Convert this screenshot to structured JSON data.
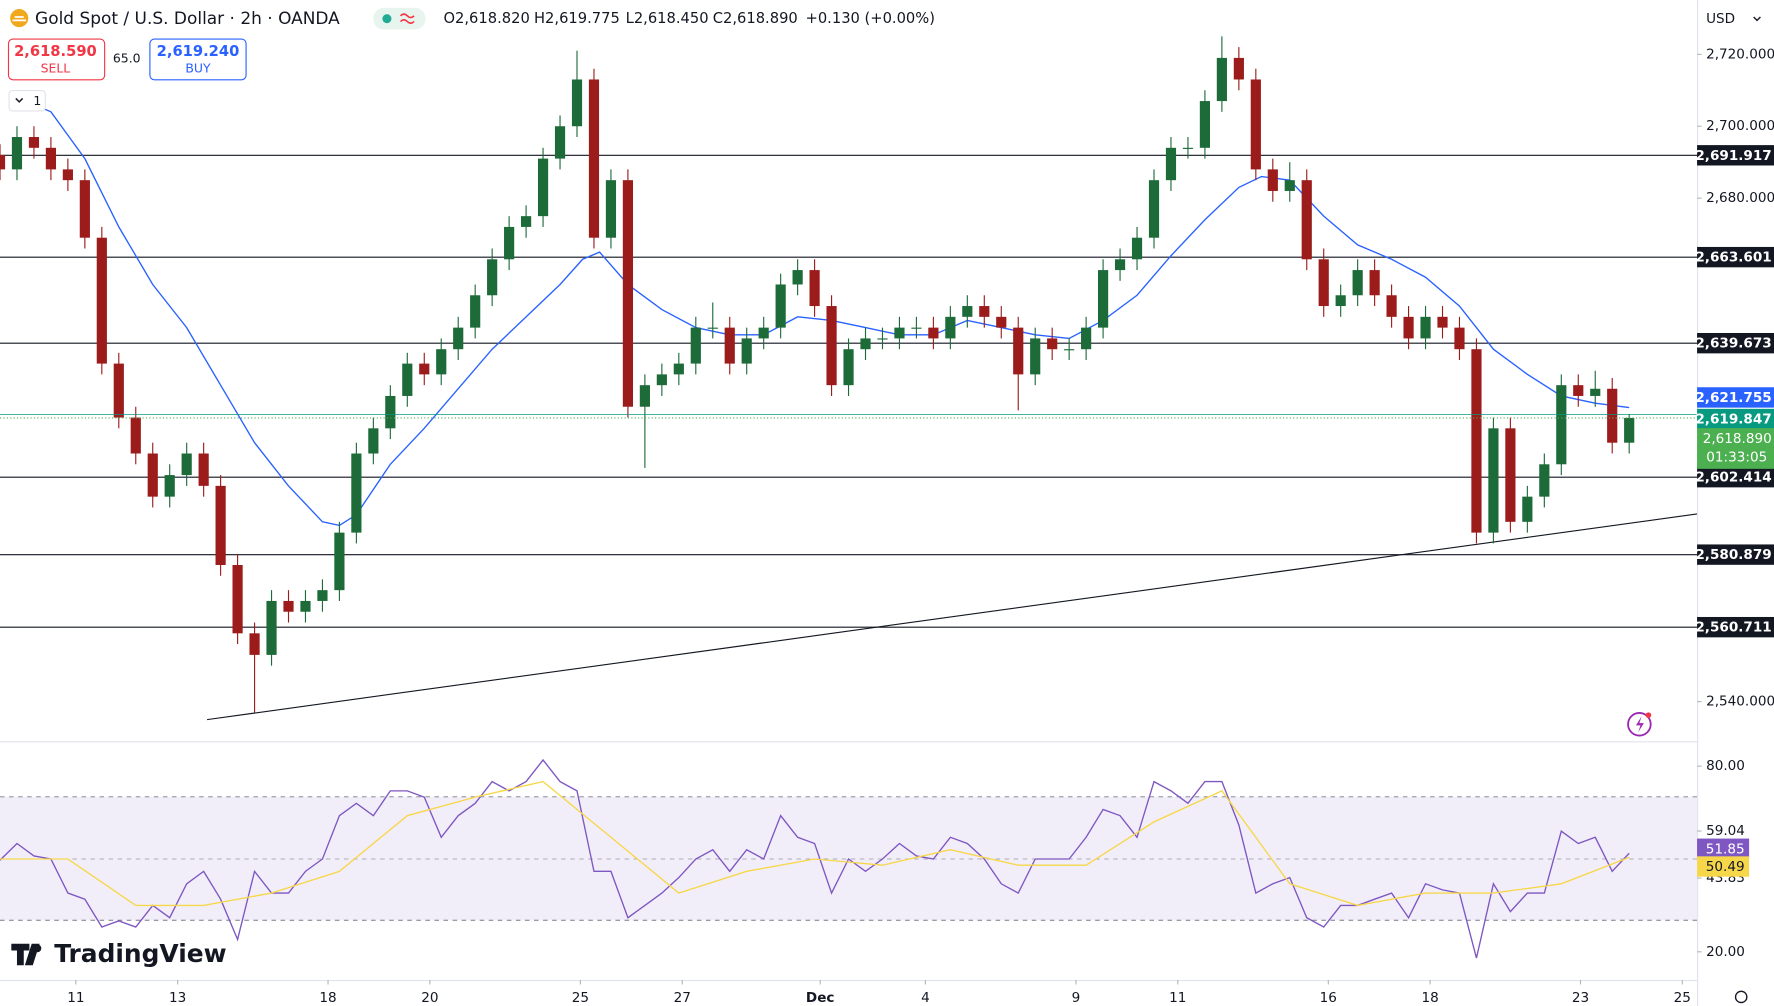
{
  "chart_data": [
    {
      "type": "candlestick",
      "title": "Gold Spot / U.S. Dollar · 2h · OANDA",
      "ohlc_labels": [
        "O2,618.820",
        "H2,619.775",
        "L2,618.450",
        "C2,618.890",
        "+0.130 (+0.00%)"
      ],
      "trade": {
        "sell_price": "2,618.590",
        "sell": "SELL",
        "spread": "65.0",
        "buy_price": "2,619.240",
        "buy": "BUY"
      },
      "indicator_count": "1",
      "currency": "USD",
      "branding": "TradingView",
      "xlim": [
        0,
        100
      ],
      "ylim": [
        2529.0,
        2735.1
      ],
      "yticks": [
        {
          "value": 2720,
          "label": "2,720.000"
        },
        {
          "value": 2700,
          "label": "2,700.000"
        },
        {
          "value": 2680,
          "label": "2,680.000"
        },
        {
          "value": 2540,
          "label": "2,540.000"
        }
      ],
      "xticks": [
        {
          "value": 4.47,
          "label": "11"
        },
        {
          "value": 10.47,
          "label": "13"
        },
        {
          "value": 19.33,
          "label": "18"
        },
        {
          "value": 25.33,
          "label": "20"
        },
        {
          "value": 34.2,
          "label": "25"
        },
        {
          "value": 40.2,
          "label": "27"
        },
        {
          "value": 48.33,
          "label": "Dec"
        },
        {
          "value": 54.53,
          "label": "4"
        },
        {
          "value": 63.4,
          "label": "9"
        },
        {
          "value": 69.4,
          "label": "11"
        },
        {
          "value": 78.27,
          "label": "16"
        },
        {
          "value": 84.27,
          "label": "18"
        },
        {
          "value": 93.13,
          "label": "23"
        },
        {
          "value": 99.13,
          "label": "25"
        }
      ],
      "levels": [
        {
          "value": 2691.917,
          "label": "2,691.917"
        },
        {
          "value": 2663.601,
          "label": "2,663.601"
        },
        {
          "value": 2639.673,
          "label": "2,639.673"
        },
        {
          "value": 2602.414,
          "label": "2,602.414"
        },
        {
          "value": 2580.879,
          "label": "2,580.879"
        },
        {
          "value": 2560.711,
          "label": "2,560.711"
        }
      ],
      "trendline": {
        "x": [
          12.2,
          100
        ],
        "values": [
          2535,
          2592.2
        ]
      },
      "price_labels": [
        {
          "value": 2621.755,
          "label": "2,621.755",
          "color": "#2962ff"
        },
        {
          "value": 2619.847,
          "label": "2,619.847",
          "color": "#089981"
        },
        {
          "value": 2618.89,
          "label": "2,618.890",
          "color": "#4caf50"
        }
      ],
      "countdown": "01:33:05",
      "series": [
        {
          "color_up": "#1e6b3a",
          "color_down": "#9c1c1c",
          "values": [
            [
              2692,
              2695,
              2685,
              2688
            ],
            [
              2688,
              2700,
              2685,
              2697
            ],
            [
              2697,
              2700,
              2691,
              2694
            ],
            [
              2694,
              2697,
              2685,
              2688
            ],
            [
              2688,
              2691,
              2682,
              2685
            ],
            [
              2685,
              2688,
              2666,
              2669
            ],
            [
              2669,
              2672,
              2631,
              2634
            ],
            [
              2634,
              2637,
              2616,
              2619
            ],
            [
              2619,
              2622,
              2606,
              2609
            ],
            [
              2609,
              2612,
              2594,
              2597
            ],
            [
              2597,
              2606,
              2594,
              2603
            ],
            [
              2603,
              2612,
              2600,
              2609
            ],
            [
              2609,
              2612,
              2597,
              2600
            ],
            [
              2600,
              2603,
              2575,
              2578
            ],
            [
              2578,
              2581,
              2556,
              2559
            ],
            [
              2559,
              2562,
              2537,
              2553
            ],
            [
              2553,
              2571,
              2550,
              2568
            ],
            [
              2568,
              2571,
              2562,
              2565
            ],
            [
              2565,
              2571,
              2562,
              2568
            ],
            [
              2568,
              2574,
              2565,
              2571
            ],
            [
              2571,
              2590,
              2568,
              2587
            ],
            [
              2587,
              2612,
              2584,
              2609
            ],
            [
              2609,
              2619,
              2606,
              2616
            ],
            [
              2616,
              2628,
              2613,
              2625
            ],
            [
              2625,
              2637,
              2622,
              2634
            ],
            [
              2634,
              2637,
              2628,
              2631
            ],
            [
              2631,
              2641,
              2628,
              2638
            ],
            [
              2638,
              2647,
              2635,
              2644
            ],
            [
              2644,
              2656,
              2641,
              2653
            ],
            [
              2653,
              2666,
              2650,
              2663
            ],
            [
              2663,
              2675,
              2660,
              2672
            ],
            [
              2672,
              2678,
              2669,
              2675
            ],
            [
              2675,
              2694,
              2672,
              2691
            ],
            [
              2691,
              2703,
              2688,
              2700
            ],
            [
              2700,
              2721,
              2697,
              2713
            ],
            [
              2713,
              2716,
              2666,
              2669
            ],
            [
              2669,
              2688,
              2666,
              2685
            ],
            [
              2685,
              2688,
              2619,
              2622
            ],
            [
              2622,
              2631,
              2605,
              2628
            ],
            [
              2628,
              2634,
              2625,
              2631
            ],
            [
              2631,
              2637,
              2628,
              2634
            ],
            [
              2634,
              2647,
              2631,
              2644
            ],
            [
              2644,
              2651,
              2641,
              2644
            ],
            [
              2644,
              2647,
              2631,
              2634
            ],
            [
              2634,
              2644,
              2631,
              2641
            ],
            [
              2641,
              2647,
              2638,
              2644
            ],
            [
              2644,
              2659,
              2641,
              2656
            ],
            [
              2656,
              2663,
              2653,
              2660
            ],
            [
              2660,
              2663,
              2647,
              2650
            ],
            [
              2650,
              2653,
              2625,
              2628
            ],
            [
              2628,
              2641,
              2625,
              2638
            ],
            [
              2638,
              2644,
              2635,
              2641
            ],
            [
              2641,
              2644,
              2638,
              2641
            ],
            [
              2641,
              2647,
              2638,
              2644
            ],
            [
              2644,
              2647,
              2641,
              2644
            ],
            [
              2644,
              2647,
              2638,
              2641
            ],
            [
              2641,
              2650,
              2638,
              2647
            ],
            [
              2647,
              2653,
              2644,
              2650
            ],
            [
              2650,
              2653,
              2644,
              2647
            ],
            [
              2647,
              2650,
              2641,
              2644
            ],
            [
              2644,
              2647,
              2621,
              2631
            ],
            [
              2631,
              2644,
              2628,
              2641
            ],
            [
              2641,
              2644,
              2635,
              2638
            ],
            [
              2638,
              2641,
              2635,
              2638
            ],
            [
              2638,
              2647,
              2635,
              2644
            ],
            [
              2644,
              2663,
              2641,
              2660
            ],
            [
              2660,
              2666,
              2657,
              2663
            ],
            [
              2663,
              2672,
              2660,
              2669
            ],
            [
              2669,
              2688,
              2666,
              2685
            ],
            [
              2685,
              2697,
              2682,
              2694
            ],
            [
              2694,
              2697,
              2691,
              2694
            ],
            [
              2694,
              2710,
              2691,
              2707
            ],
            [
              2707,
              2725,
              2704,
              2719
            ],
            [
              2719,
              2722,
              2710,
              2713
            ],
            [
              2713,
              2716,
              2685,
              2688
            ],
            [
              2688,
              2691,
              2679,
              2682
            ],
            [
              2682,
              2690,
              2679,
              2685
            ],
            [
              2685,
              2688,
              2660,
              2663
            ],
            [
              2663,
              2666,
              2647,
              2650
            ],
            [
              2650,
              2656,
              2647,
              2653
            ],
            [
              2653,
              2663,
              2650,
              2660
            ],
            [
              2660,
              2663,
              2650,
              2653
            ],
            [
              2653,
              2656,
              2644,
              2647
            ],
            [
              2647,
              2650,
              2638,
              2641
            ],
            [
              2641,
              2650,
              2638,
              2647
            ],
            [
              2647,
              2650,
              2641,
              2644
            ],
            [
              2644,
              2647,
              2635,
              2638
            ],
            [
              2638,
              2641,
              2584,
              2587
            ],
            [
              2587,
              2619,
              2584,
              2616
            ],
            [
              2616,
              2619,
              2587,
              2590
            ],
            [
              2590,
              2600,
              2587,
              2597
            ],
            [
              2597,
              2609,
              2594,
              2606
            ],
            [
              2606,
              2631,
              2603,
              2628
            ],
            [
              2628,
              2631,
              2622,
              2625
            ],
            [
              2625,
              2632,
              2622,
              2627
            ],
            [
              2627,
              2630,
              2609,
              2612
            ],
            [
              2612,
              2620,
              2609,
              2618.89
            ]
          ]
        },
        {
          "color": "#2962ff",
          "x": [
            1,
            3,
            5,
            7,
            9,
            11,
            13,
            15,
            17,
            19,
            20,
            21,
            23,
            25,
            27,
            29,
            31,
            33,
            34.33,
            35.33,
            37,
            39,
            41,
            43,
            45,
            47,
            49,
            51,
            53,
            55,
            57,
            59,
            61,
            63,
            65,
            67,
            69,
            71,
            73,
            74.33,
            76,
            78,
            80,
            82,
            84,
            86,
            88,
            90,
            92,
            94,
            96
          ],
          "values": [
            2708,
            2704,
            2691,
            2672,
            2656,
            2644,
            2628,
            2612,
            2600,
            2590,
            2589,
            2592,
            2606,
            2616,
            2627,
            2638,
            2647,
            2656,
            2663,
            2665,
            2656,
            2649,
            2644,
            2642,
            2642,
            2647,
            2646,
            2644,
            2642,
            2642,
            2646,
            2644,
            2642,
            2641,
            2646,
            2653,
            2664,
            2674,
            2683,
            2686,
            2685,
            2675,
            2667,
            2663,
            2658,
            2650,
            2638,
            2631,
            2625,
            2623,
            2621.755
          ]
        }
      ]
    },
    {
      "type": "line",
      "xlim": [
        0,
        100
      ],
      "ylim": [
        10.9,
        87.7
      ],
      "yticks": [
        {
          "value": 80,
          "label": "80.00"
        },
        59.04,
        43.83,
        {
          "value": 20,
          "label": "20.00"
        }
      ],
      "band": [
        30.2,
        70.1
      ],
      "midline": 50,
      "series": [
        {
          "color": "#7e57c2",
          "values": [
            49.6,
            55,
            51,
            50,
            39,
            37,
            28,
            30,
            28,
            35,
            31,
            42,
            46,
            37,
            24,
            46,
            39,
            39,
            46,
            50,
            64,
            68,
            64,
            72,
            72,
            70,
            57,
            64,
            68,
            75,
            72,
            75,
            82,
            75,
            72,
            46,
            46,
            31,
            35,
            39,
            44,
            50,
            53,
            46,
            53,
            50,
            64,
            57,
            55,
            39,
            50,
            46,
            50,
            55,
            51,
            50,
            57,
            55,
            50,
            42,
            39,
            50,
            50,
            50,
            57,
            66,
            64,
            57,
            75,
            72,
            68,
            75,
            75,
            61,
            39,
            42,
            44,
            31,
            28,
            35,
            35,
            37,
            39,
            31,
            42,
            40,
            39,
            18,
            42,
            33,
            39,
            39,
            59,
            55,
            57,
            46,
            51.85
          ],
          "value_label": "51.85"
        },
        {
          "color": "#f7d74a",
          "x": [
            0,
            4,
            8,
            12,
            16,
            20,
            24,
            28,
            32,
            36,
            40,
            44,
            48,
            52,
            56,
            60,
            64,
            68,
            72,
            76,
            80,
            84,
            88,
            92,
            96
          ],
          "values": [
            50,
            50,
            35,
            35,
            39,
            46,
            64,
            70,
            75,
            57,
            39,
            46,
            50,
            48,
            53,
            48,
            48,
            62,
            72,
            42,
            35,
            39,
            39,
            42,
            50.49
          ],
          "value_label": "50.49"
        }
      ]
    }
  ]
}
